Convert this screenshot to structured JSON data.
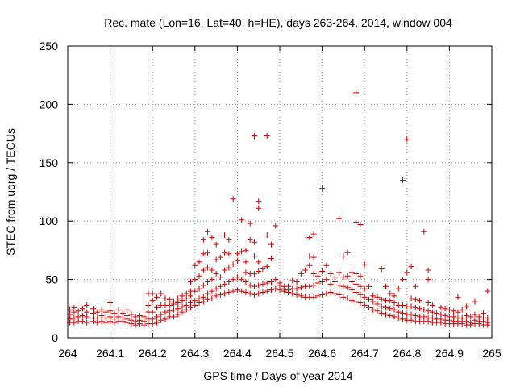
{
  "chart_data": {
    "type": "scatter",
    "title": "Rec. mate (Lon=16, Lat=40, h=HE), days 263-264, 2014, window 004",
    "xlabel": "GPS time / Days of year 2014",
    "ylabel": "STEC from uqrg / TECUs",
    "xlim": [
      264,
      265
    ],
    "ylim": [
      0,
      250
    ],
    "xticks": [
      "264",
      "264.1",
      "264.2",
      "264.3",
      "264.4",
      "264.5",
      "264.6",
      "264.7",
      "264.8",
      "264.9",
      "265"
    ],
    "yticks": [
      "0",
      "50",
      "100",
      "150",
      "200",
      "250"
    ],
    "grid": true,
    "marker": "+",
    "color": "#d40000",
    "points": [
      [
        264.005,
        13
      ],
      [
        264.005,
        16
      ],
      [
        264.005,
        20
      ],
      [
        264.005,
        24
      ],
      [
        264.015,
        13
      ],
      [
        264.015,
        17
      ],
      [
        264.015,
        22
      ],
      [
        264.015,
        26
      ],
      [
        264.025,
        14
      ],
      [
        264.025,
        18
      ],
      [
        264.025,
        23
      ],
      [
        264.035,
        14
      ],
      [
        264.035,
        19
      ],
      [
        264.035,
        25
      ],
      [
        264.045,
        13
      ],
      [
        264.045,
        18
      ],
      [
        264.045,
        22
      ],
      [
        264.045,
        28
      ],
      [
        264.06,
        14
      ],
      [
        264.06,
        17
      ],
      [
        264.06,
        21
      ],
      [
        264.06,
        25
      ],
      [
        264.07,
        13
      ],
      [
        264.07,
        17
      ],
      [
        264.07,
        22
      ],
      [
        264.08,
        14
      ],
      [
        264.08,
        19
      ],
      [
        264.08,
        24
      ],
      [
        264.09,
        13
      ],
      [
        264.09,
        17
      ],
      [
        264.09,
        22
      ],
      [
        264.1,
        14
      ],
      [
        264.1,
        18
      ],
      [
        264.1,
        23
      ],
      [
        264.1,
        30
      ],
      [
        264.11,
        13
      ],
      [
        264.11,
        17
      ],
      [
        264.11,
        21
      ],
      [
        264.12,
        14
      ],
      [
        264.12,
        18
      ],
      [
        264.12,
        24
      ],
      [
        264.13,
        14
      ],
      [
        264.13,
        17
      ],
      [
        264.13,
        21
      ],
      [
        264.14,
        13
      ],
      [
        264.14,
        16
      ],
      [
        264.14,
        19
      ],
      [
        264.14,
        24
      ],
      [
        264.15,
        12
      ],
      [
        264.15,
        15
      ],
      [
        264.15,
        20
      ],
      [
        264.16,
        11
      ],
      [
        264.16,
        14
      ],
      [
        264.16,
        18
      ],
      [
        264.17,
        12
      ],
      [
        264.17,
        15
      ],
      [
        264.17,
        19
      ],
      [
        264.18,
        11
      ],
      [
        264.18,
        14
      ],
      [
        264.18,
        18
      ],
      [
        264.19,
        12
      ],
      [
        264.19,
        16
      ],
      [
        264.19,
        22
      ],
      [
        264.19,
        28
      ],
      [
        264.19,
        38
      ],
      [
        264.2,
        12
      ],
      [
        264.2,
        16
      ],
      [
        264.2,
        22
      ],
      [
        264.2,
        32
      ],
      [
        264.2,
        38
      ],
      [
        264.21,
        13
      ],
      [
        264.21,
        18
      ],
      [
        264.21,
        26
      ],
      [
        264.21,
        35
      ],
      [
        264.22,
        15
      ],
      [
        264.22,
        20
      ],
      [
        264.22,
        28
      ],
      [
        264.22,
        38
      ],
      [
        264.23,
        16
      ],
      [
        264.23,
        22
      ],
      [
        264.23,
        28
      ],
      [
        264.23,
        34
      ],
      [
        264.24,
        18
      ],
      [
        264.24,
        23
      ],
      [
        264.24,
        28
      ],
      [
        264.24,
        33
      ],
      [
        264.25,
        18
      ],
      [
        264.25,
        24
      ],
      [
        264.25,
        29
      ],
      [
        264.25,
        31
      ],
      [
        264.26,
        20
      ],
      [
        264.26,
        25
      ],
      [
        264.26,
        30
      ],
      [
        264.26,
        34
      ],
      [
        264.27,
        22
      ],
      [
        264.27,
        27
      ],
      [
        264.27,
        32
      ],
      [
        264.27,
        36
      ],
      [
        264.28,
        24
      ],
      [
        264.28,
        28
      ],
      [
        264.28,
        34
      ],
      [
        264.28,
        38
      ],
      [
        264.29,
        26
      ],
      [
        264.29,
        30
      ],
      [
        264.29,
        36
      ],
      [
        264.29,
        40
      ],
      [
        264.29,
        48
      ],
      [
        264.3,
        28
      ],
      [
        264.3,
        32
      ],
      [
        264.3,
        40
      ],
      [
        264.3,
        50
      ],
      [
        264.3,
        62
      ],
      [
        264.31,
        30
      ],
      [
        264.31,
        34
      ],
      [
        264.31,
        42
      ],
      [
        264.31,
        53
      ],
      [
        264.31,
        65
      ],
      [
        264.32,
        31
      ],
      [
        264.32,
        35
      ],
      [
        264.32,
        45
      ],
      [
        264.32,
        58
      ],
      [
        264.32,
        72
      ],
      [
        264.32,
        84
      ],
      [
        264.33,
        33
      ],
      [
        264.33,
        38
      ],
      [
        264.33,
        48
      ],
      [
        264.33,
        60
      ],
      [
        264.33,
        73
      ],
      [
        264.33,
        91
      ],
      [
        264.34,
        34
      ],
      [
        264.34,
        40
      ],
      [
        264.34,
        50
      ],
      [
        264.34,
        58
      ],
      [
        264.34,
        86
      ],
      [
        264.35,
        36
      ],
      [
        264.35,
        42
      ],
      [
        264.35,
        55
      ],
      [
        264.35,
        67
      ],
      [
        264.35,
        80
      ],
      [
        264.36,
        37
      ],
      [
        264.36,
        44
      ],
      [
        264.36,
        52
      ],
      [
        264.36,
        69
      ],
      [
        264.37,
        38
      ],
      [
        264.37,
        46
      ],
      [
        264.37,
        58
      ],
      [
        264.37,
        73
      ],
      [
        264.37,
        88
      ],
      [
        264.38,
        39
      ],
      [
        264.38,
        48
      ],
      [
        264.38,
        60
      ],
      [
        264.38,
        72
      ],
      [
        264.38,
        84
      ],
      [
        264.39,
        40
      ],
      [
        264.39,
        50
      ],
      [
        264.39,
        63
      ],
      [
        264.39,
        119
      ],
      [
        264.4,
        41
      ],
      [
        264.4,
        52
      ],
      [
        264.4,
        66
      ],
      [
        264.4,
        72
      ],
      [
        264.41,
        40
      ],
      [
        264.41,
        50
      ],
      [
        264.41,
        74
      ],
      [
        264.41,
        101
      ],
      [
        264.42,
        39
      ],
      [
        264.42,
        48
      ],
      [
        264.42,
        56
      ],
      [
        264.42,
        65
      ],
      [
        264.42,
        75
      ],
      [
        264.43,
        38
      ],
      [
        264.43,
        45
      ],
      [
        264.43,
        55
      ],
      [
        264.43,
        84
      ],
      [
        264.43,
        98
      ],
      [
        264.44,
        37
      ],
      [
        264.44,
        44
      ],
      [
        264.44,
        55
      ],
      [
        264.44,
        70
      ],
      [
        264.44,
        82
      ],
      [
        264.44,
        173
      ],
      [
        264.45,
        38
      ],
      [
        264.45,
        45
      ],
      [
        264.45,
        57
      ],
      [
        264.45,
        65
      ],
      [
        264.45,
        111
      ],
      [
        264.45,
        117
      ],
      [
        264.46,
        39
      ],
      [
        264.46,
        46
      ],
      [
        264.46,
        59
      ],
      [
        264.47,
        40
      ],
      [
        264.47,
        47
      ],
      [
        264.47,
        61
      ],
      [
        264.47,
        88
      ],
      [
        264.47,
        173
      ],
      [
        264.48,
        41
      ],
      [
        264.48,
        48
      ],
      [
        264.48,
        68
      ],
      [
        264.48,
        80
      ],
      [
        264.49,
        42
      ],
      [
        264.49,
        50
      ],
      [
        264.49,
        96
      ],
      [
        264.5,
        41
      ],
      [
        264.5,
        45
      ],
      [
        264.5,
        47
      ],
      [
        264.51,
        40
      ],
      [
        264.51,
        42
      ],
      [
        264.51,
        44
      ],
      [
        264.52,
        39
      ],
      [
        264.52,
        41
      ],
      [
        264.52,
        44
      ],
      [
        264.53,
        38
      ],
      [
        264.53,
        42
      ],
      [
        264.53,
        49
      ],
      [
        264.54,
        37
      ],
      [
        264.54,
        42
      ],
      [
        264.54,
        48
      ],
      [
        264.55,
        36
      ],
      [
        264.55,
        43
      ],
      [
        264.55,
        55
      ],
      [
        264.56,
        35
      ],
      [
        264.56,
        44
      ],
      [
        264.56,
        58
      ],
      [
        264.57,
        35
      ],
      [
        264.57,
        44
      ],
      [
        264.57,
        62
      ],
      [
        264.57,
        70
      ],
      [
        264.57,
        86
      ],
      [
        264.58,
        35
      ],
      [
        264.58,
        45
      ],
      [
        264.58,
        55
      ],
      [
        264.58,
        69
      ],
      [
        264.58,
        89
      ],
      [
        264.59,
        36
      ],
      [
        264.59,
        47
      ],
      [
        264.59,
        53
      ],
      [
        264.6,
        37
      ],
      [
        264.6,
        48
      ],
      [
        264.6,
        57
      ],
      [
        264.6,
        128
      ],
      [
        264.61,
        38
      ],
      [
        264.61,
        50
      ],
      [
        264.61,
        62
      ],
      [
        264.62,
        39
      ],
      [
        264.62,
        46
      ],
      [
        264.62,
        55
      ],
      [
        264.63,
        38
      ],
      [
        264.63,
        48
      ],
      [
        264.63,
        52
      ],
      [
        264.64,
        37
      ],
      [
        264.64,
        45
      ],
      [
        264.64,
        56
      ],
      [
        264.64,
        102
      ],
      [
        264.65,
        35
      ],
      [
        264.65,
        44
      ],
      [
        264.65,
        52
      ],
      [
        264.65,
        70
      ],
      [
        264.66,
        34
      ],
      [
        264.66,
        43
      ],
      [
        264.66,
        53
      ],
      [
        264.66,
        73
      ],
      [
        264.67,
        32
      ],
      [
        264.67,
        41
      ],
      [
        264.67,
        48
      ],
      [
        264.67,
        56
      ],
      [
        264.68,
        31
      ],
      [
        264.68,
        39
      ],
      [
        264.68,
        46
      ],
      [
        264.68,
        55
      ],
      [
        264.68,
        99
      ],
      [
        264.68,
        210
      ],
      [
        264.69,
        30
      ],
      [
        264.69,
        37
      ],
      [
        264.69,
        44
      ],
      [
        264.69,
        53
      ],
      [
        264.69,
        97
      ],
      [
        264.7,
        28
      ],
      [
        264.7,
        35
      ],
      [
        264.7,
        42
      ],
      [
        264.7,
        63
      ],
      [
        264.71,
        26
      ],
      [
        264.71,
        33
      ],
      [
        264.71,
        44
      ],
      [
        264.72,
        24
      ],
      [
        264.72,
        31
      ],
      [
        264.72,
        36
      ],
      [
        264.73,
        23
      ],
      [
        264.73,
        29
      ],
      [
        264.73,
        35
      ],
      [
        264.74,
        21
      ],
      [
        264.74,
        27
      ],
      [
        264.74,
        33
      ],
      [
        264.74,
        59
      ],
      [
        264.75,
        20
      ],
      [
        264.75,
        26
      ],
      [
        264.75,
        32
      ],
      [
        264.75,
        44
      ],
      [
        264.76,
        19
      ],
      [
        264.76,
        25
      ],
      [
        264.76,
        32
      ],
      [
        264.76,
        38
      ],
      [
        264.77,
        18
      ],
      [
        264.77,
        24
      ],
      [
        264.77,
        30
      ],
      [
        264.77,
        36
      ],
      [
        264.78,
        17
      ],
      [
        264.78,
        22
      ],
      [
        264.78,
        28
      ],
      [
        264.78,
        42
      ],
      [
        264.79,
        16
      ],
      [
        264.79,
        21
      ],
      [
        264.79,
        28
      ],
      [
        264.79,
        50
      ],
      [
        264.79,
        135
      ],
      [
        264.8,
        15
      ],
      [
        264.8,
        20
      ],
      [
        264.8,
        27
      ],
      [
        264.8,
        56
      ],
      [
        264.8,
        170
      ],
      [
        264.81,
        15
      ],
      [
        264.81,
        20
      ],
      [
        264.81,
        27
      ],
      [
        264.81,
        34
      ],
      [
        264.81,
        61
      ],
      [
        264.82,
        14
      ],
      [
        264.82,
        19
      ],
      [
        264.82,
        26
      ],
      [
        264.82,
        33
      ],
      [
        264.82,
        44
      ],
      [
        264.83,
        14
      ],
      [
        264.83,
        18
      ],
      [
        264.83,
        25
      ],
      [
        264.83,
        32
      ],
      [
        264.84,
        14
      ],
      [
        264.84,
        18
      ],
      [
        264.84,
        24
      ],
      [
        264.84,
        91
      ],
      [
        264.85,
        14
      ],
      [
        264.85,
        17
      ],
      [
        264.85,
        23
      ],
      [
        264.85,
        30
      ],
      [
        264.85,
        50
      ],
      [
        264.85,
        58
      ],
      [
        264.86,
        13
      ],
      [
        264.86,
        17
      ],
      [
        264.86,
        22
      ],
      [
        264.86,
        28
      ],
      [
        264.87,
        13
      ],
      [
        264.87,
        16
      ],
      [
        264.87,
        21
      ],
      [
        264.88,
        13
      ],
      [
        264.88,
        16
      ],
      [
        264.88,
        20
      ],
      [
        264.88,
        26
      ],
      [
        264.89,
        12
      ],
      [
        264.89,
        15
      ],
      [
        264.89,
        19
      ],
      [
        264.89,
        25
      ],
      [
        264.9,
        12
      ],
      [
        264.9,
        15
      ],
      [
        264.9,
        18
      ],
      [
        264.9,
        24
      ],
      [
        264.91,
        12
      ],
      [
        264.91,
        14
      ],
      [
        264.91,
        18
      ],
      [
        264.91,
        23
      ],
      [
        264.92,
        12
      ],
      [
        264.92,
        14
      ],
      [
        264.92,
        17
      ],
      [
        264.92,
        22
      ],
      [
        264.92,
        35
      ],
      [
        264.93,
        12
      ],
      [
        264.93,
        14
      ],
      [
        264.93,
        17
      ],
      [
        264.93,
        24
      ],
      [
        264.94,
        11
      ],
      [
        264.94,
        14
      ],
      [
        264.94,
        19
      ],
      [
        264.94,
        27
      ],
      [
        264.95,
        11
      ],
      [
        264.95,
        13
      ],
      [
        264.95,
        18
      ],
      [
        264.96,
        12
      ],
      [
        264.96,
        15
      ],
      [
        264.96,
        20
      ],
      [
        264.96,
        31
      ],
      [
        264.97,
        12
      ],
      [
        264.97,
        14
      ],
      [
        264.97,
        18
      ],
      [
        264.98,
        11
      ],
      [
        264.98,
        14
      ],
      [
        264.98,
        17
      ],
      [
        264.98,
        21
      ],
      [
        264.99,
        11
      ],
      [
        264.99,
        13
      ],
      [
        264.99,
        17
      ],
      [
        264.99,
        40
      ]
    ]
  }
}
